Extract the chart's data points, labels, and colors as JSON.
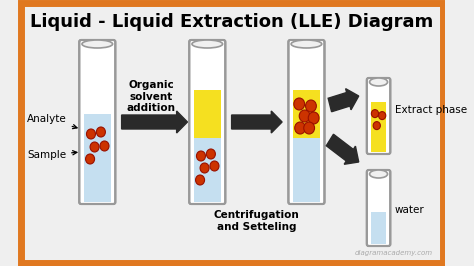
{
  "title": "Liquid - Liquid Extraction (LLE) Diagram",
  "title_fontsize": 13,
  "title_fontweight": "bold",
  "background_color": "#efefef",
  "border_color": "#e07820",
  "tube_outline_color": "#999999",
  "tube_fill_color": "#ffffff",
  "water_phase_color": "#c5dff0",
  "organic_phase_color": "#f5e020",
  "dot_color": "#cc3300",
  "dot_outline_color": "#991100",
  "arrow_color": "#2a2a2a",
  "label_color": "#000000",
  "watermark": "diagramacademy.com",
  "labels": {
    "analyte": "Analyte",
    "sample": "Sample",
    "organic": "Organic\nsolvent\naddition",
    "centrifuge": "Centrifugation\nand Setteling",
    "extract": "Extract phase",
    "water": "water"
  }
}
